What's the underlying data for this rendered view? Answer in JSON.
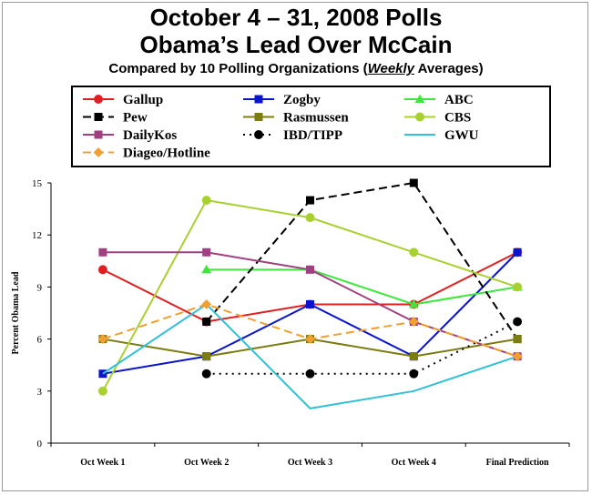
{
  "title_line1": "October 4 – 31, 2008 Polls",
  "title_line2": "Obama’s Lead Over McCain",
  "subtitle_pre": "Compared by 10 Polling Organizations (",
  "subtitle_em": "Weekly",
  "subtitle_post": " Averages)",
  "chart_data": {
    "type": "line",
    "title": "October 4 – 31, 2008 Polls Obama’s Lead Over McCain",
    "subtitle": "Compared by 10 Polling Organizations (Weekly Averages)",
    "xlabel": "",
    "ylabel": "Percent Obama Lead",
    "ylim": [
      0,
      15
    ],
    "yticks": [
      0,
      3,
      6,
      9,
      12,
      15
    ],
    "grid": false,
    "legend_position": "top",
    "categories": [
      "Oct Week 1",
      "Oct Week 2",
      "Oct Week 3",
      "Oct Week 4",
      "Final Prediction"
    ],
    "series": [
      {
        "name": "Gallup",
        "values": [
          10,
          7,
          8,
          8,
          11
        ],
        "color": "#e02020",
        "marker": "circle",
        "dash": "solid"
      },
      {
        "name": "Zogby",
        "values": [
          4,
          5,
          8,
          5,
          11
        ],
        "color": "#0a14c8",
        "marker": "square",
        "dash": "solid"
      },
      {
        "name": "ABC",
        "values": [
          null,
          10,
          10,
          8,
          9
        ],
        "color": "#3ee63e",
        "marker": "triangle",
        "dash": "solid"
      },
      {
        "name": "Pew",
        "values": [
          null,
          7,
          14,
          15,
          6
        ],
        "color": "#000000",
        "marker": "square",
        "dash": "dashed"
      },
      {
        "name": "Rasmussen",
        "values": [
          6,
          5,
          6,
          5,
          6
        ],
        "color": "#7c7c14",
        "marker": "square",
        "dash": "solid"
      },
      {
        "name": "CBS",
        "values": [
          3,
          14,
          13,
          11,
          9
        ],
        "color": "#a8d030",
        "marker": "circle",
        "dash": "solid"
      },
      {
        "name": "DailyKos",
        "values": [
          11,
          11,
          10,
          7,
          5
        ],
        "color": "#a04080",
        "marker": "square",
        "dash": "solid"
      },
      {
        "name": "IBD/TIPP",
        "values": [
          null,
          4,
          4,
          4,
          7
        ],
        "color": "#000000",
        "marker": "circle",
        "dash": "dotted"
      },
      {
        "name": "GWU",
        "values": [
          4,
          8,
          2,
          3,
          5
        ],
        "color": "#30c0d8",
        "marker": "none",
        "dash": "solid"
      },
      {
        "name": "Diageo/Hotline",
        "values": [
          6,
          8,
          6,
          7,
          5
        ],
        "color": "#f0a030",
        "marker": "diamond",
        "dash": "dashed"
      }
    ]
  }
}
